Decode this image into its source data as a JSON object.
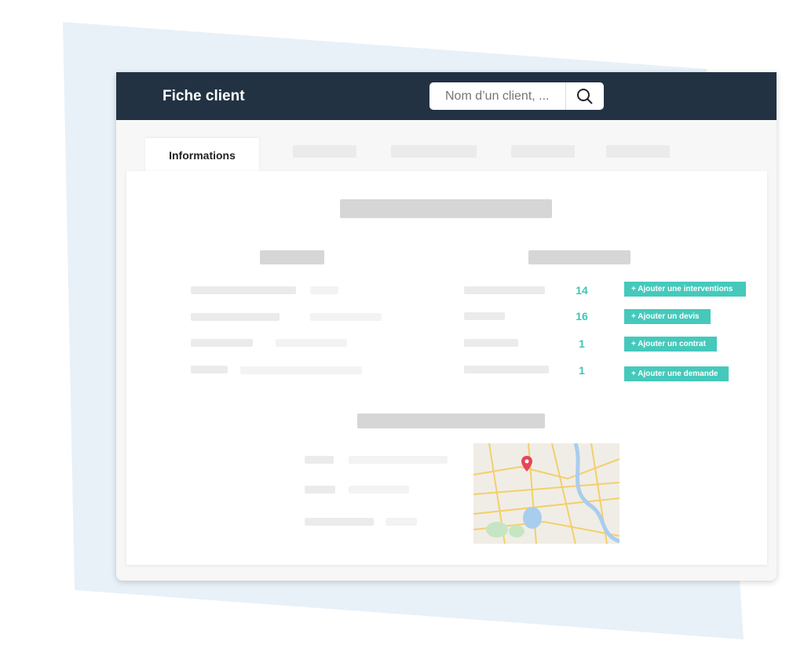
{
  "header": {
    "title": "Fiche client",
    "search_placeholder": "Nom d’un client, ..."
  },
  "tabs": [
    {
      "label": "Informations",
      "active": true
    }
  ],
  "stats": [
    {
      "count": "14",
      "action": "+ Ajouter une interventions"
    },
    {
      "count": "16",
      "action": "+ Ajouter un devis"
    },
    {
      "count": "1",
      "action": "+ Ajouter un contrat"
    },
    {
      "count": "1",
      "action": "+ Ajouter une demande"
    }
  ],
  "colors": {
    "header": "#223243",
    "accent": "#45c9bb",
    "backdrop": "#e8f1f8"
  },
  "icons": {
    "search": "magnifier-icon",
    "map_pin": "map-pin-icon"
  }
}
